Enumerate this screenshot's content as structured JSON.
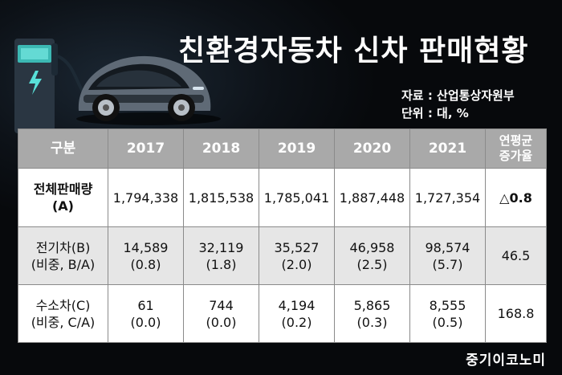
{
  "header": {
    "title": "친환경자동차 신차 판매현황",
    "source": "자료 : 산업통상자원부",
    "unit": "단위 : 대, %"
  },
  "table": {
    "headers": [
      "구분",
      "2017",
      "2018",
      "2019",
      "2020",
      "2021"
    ],
    "cagr_header": [
      "연평균",
      "증가율"
    ],
    "rows": [
      {
        "label": [
          "전체판매량",
          "(A)"
        ],
        "values": [
          [
            "1,794,338"
          ],
          [
            "1,815,538"
          ],
          [
            "1,785,041"
          ],
          [
            "1,887,448"
          ],
          [
            "1,727,354"
          ]
        ],
        "cagr": "△0.8"
      },
      {
        "label": [
          "전기차(B)",
          "(비중, B/A)"
        ],
        "values": [
          [
            "14,589",
            "(0.8)"
          ],
          [
            "32,119",
            "(1.8)"
          ],
          [
            "35,527",
            "(2.0)"
          ],
          [
            "46,958",
            "(2.5)"
          ],
          [
            "98,574",
            "(5.7)"
          ]
        ],
        "cagr": "46.5"
      },
      {
        "label": [
          "수소차(C)",
          "(비중, C/A)"
        ],
        "values": [
          [
            "61",
            "(0.0)"
          ],
          [
            "744",
            "(0.0)"
          ],
          [
            "4,194",
            "(0.2)"
          ],
          [
            "5,865",
            "(0.3)"
          ],
          [
            "8,555",
            "(0.5)"
          ]
        ],
        "cagr": "168.8"
      }
    ]
  },
  "brand": "중기이코노미",
  "icons": [
    "ev-charger-icon",
    "electric-car-icon"
  ]
}
